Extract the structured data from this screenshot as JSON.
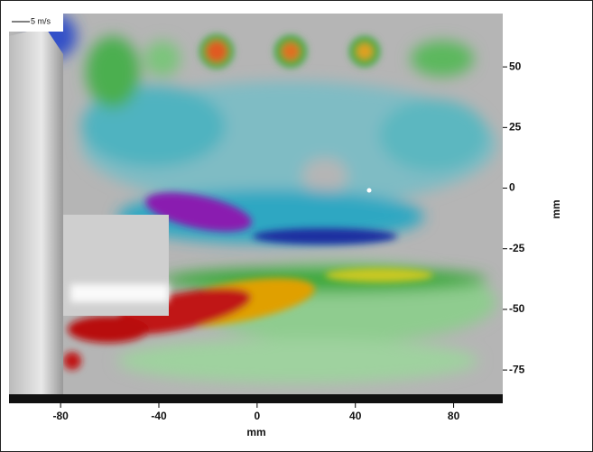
{
  "chart_data": {
    "type": "contour",
    "annotation": "5 m/s",
    "xlabel": "mm",
    "ylabel": "mm",
    "xlim": [
      -101,
      100
    ],
    "xticks": [
      -80,
      -40,
      0,
      40,
      80
    ],
    "ylim": [
      -85,
      72
    ],
    "yticks": [
      50,
      25,
      0,
      -25,
      -50,
      -75
    ]
  }
}
